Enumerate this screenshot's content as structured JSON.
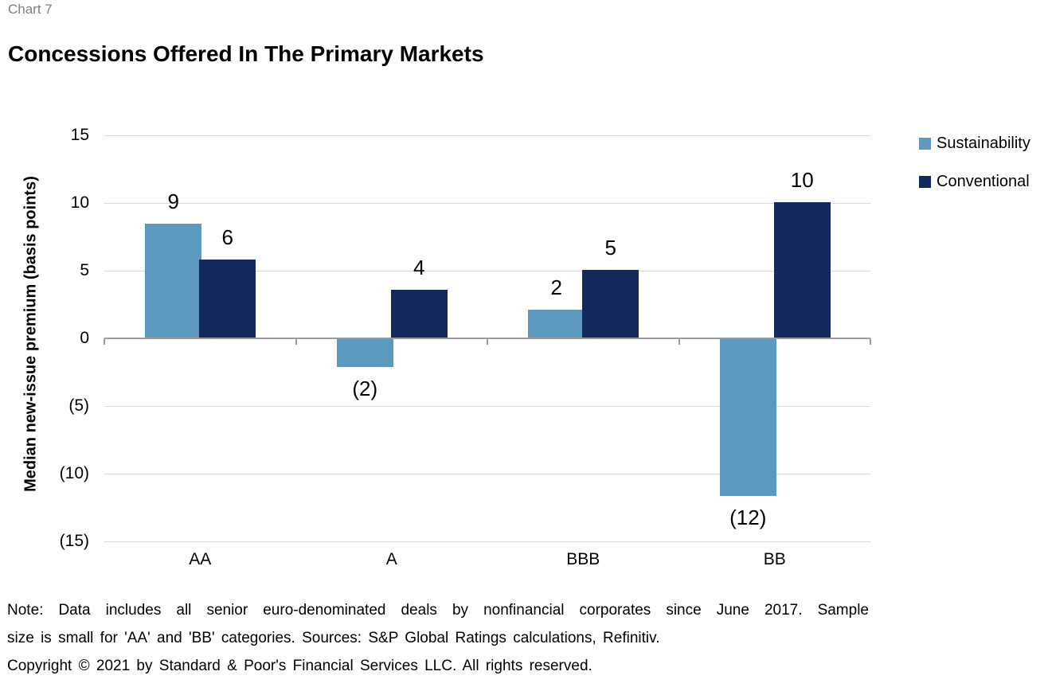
{
  "page": {
    "chart_label": "Chart 7",
    "title": "Concessions Offered In The Primary Markets"
  },
  "chart_data": {
    "type": "bar",
    "title": "Concessions Offered In The Primary Markets",
    "categories": [
      "AA",
      "A",
      "BBB",
      "BB"
    ],
    "series": [
      {
        "name": "Sustainability",
        "color": "#5d98be",
        "values": [
          9,
          -2,
          2,
          -12
        ],
        "labels": [
          "9",
          "(2)",
          "2",
          "(12)"
        ],
        "drawn_values": [
          8.5,
          -2.1,
          2.1,
          -11.65
        ]
      },
      {
        "name": "Conventional",
        "color": "#13295b",
        "values": [
          6,
          4,
          5,
          10
        ],
        "labels": [
          "6",
          "4",
          "5",
          "10"
        ],
        "drawn_values": [
          5.8,
          3.6,
          5.05,
          10.05
        ]
      }
    ],
    "xlabel": "",
    "ylabel": "Median new-issue premium (basis points)",
    "ylim": [
      -15,
      15
    ],
    "yticks": [
      {
        "value": 15,
        "label": "15"
      },
      {
        "value": 10,
        "label": "10"
      },
      {
        "value": 5,
        "label": "5"
      },
      {
        "value": 0,
        "label": "0"
      },
      {
        "value": -5,
        "label": "(5)"
      },
      {
        "value": -10,
        "label": "(10)"
      },
      {
        "value": -15,
        "label": "(15)"
      }
    ],
    "grid": true,
    "legend_position": "right",
    "negative_number_format": "parentheses"
  },
  "colors": {
    "sustainability": "#5d98be",
    "conventional": "#13295b",
    "gridline": "#d9d9d9",
    "axis_line": "#9b9b9b",
    "chart_label_gray": "#7f7f7f"
  },
  "footer": {
    "lines": [
      "Note: Data includes all senior euro-denominated deals by nonfinancial corporates since June 2017. Sample",
      "size is small for 'AA' and 'BB' categories. Sources: S&P Global Ratings calculations, Refinitiv.",
      "Copyright © 2021 by Standard & Poor's Financial Services LLC. All rights reserved."
    ]
  }
}
